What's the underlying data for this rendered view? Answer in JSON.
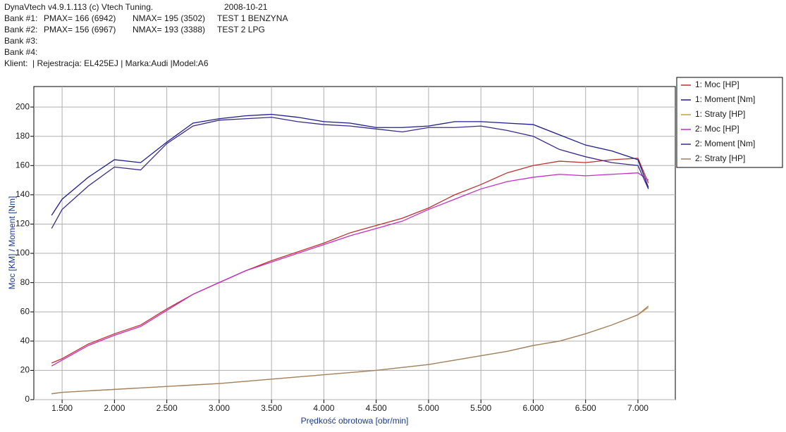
{
  "header": {
    "title": "DynaVtech v4.9.1.113 (c) Vtech Tuning.",
    "date": "2008-10-21",
    "banks": [
      [
        "Bank #1:",
        "PMAX= 166 (6942)",
        "NMAX= 195 (3502)",
        "TEST 1 BENZYNA"
      ],
      [
        "Bank #2:",
        "PMAX= 156 (6967)",
        "NMAX= 193 (3388)",
        "TEST 2 LPG"
      ],
      [
        "Bank #3:"
      ],
      [
        "Bank #4:"
      ]
    ],
    "client": "Klient:  | Rejestracja: EL425EJ | Marka:Audi |Model:A6"
  },
  "chart_data": {
    "type": "line",
    "x_label": "Prędkość obrotowa [obr/min]",
    "y_label": "Moc [KM] / Moment [Nm]",
    "x": [
      1400,
      1500,
      1750,
      2000,
      2250,
      2500,
      2750,
      3000,
      3250,
      3500,
      3750,
      4000,
      4250,
      4500,
      4750,
      5000,
      5250,
      5500,
      5750,
      6000,
      6250,
      6500,
      6750,
      7000,
      7100
    ],
    "series": [
      {
        "name": "1: Moc [HP]",
        "color": "#c03030",
        "values": [
          25,
          28,
          38,
          45,
          51,
          62,
          72,
          80,
          88,
          95,
          101,
          107,
          114,
          119,
          124,
          131,
          140,
          147,
          155,
          160,
          163,
          162,
          164,
          165,
          148
        ]
      },
      {
        "name": "1: Moment [Nm]",
        "color": "#1c1c8c",
        "values": [
          126,
          137,
          152,
          164,
          162,
          176,
          189,
          192,
          194,
          195,
          193,
          190,
          189,
          186,
          186,
          187,
          190,
          190,
          189,
          188,
          181,
          174,
          170,
          164,
          145
        ]
      },
      {
        "name": "1: Straty [HP]",
        "color": "#d09a40",
        "values": [
          4,
          5,
          6,
          7,
          8,
          9,
          10,
          11,
          12.5,
          14,
          15.5,
          17,
          18.5,
          20,
          22,
          24,
          27,
          30,
          33,
          37,
          40,
          45,
          51,
          58,
          63
        ]
      },
      {
        "name": "2: Moc [HP]",
        "color": "#c030c0",
        "values": [
          23,
          27,
          37,
          44,
          50,
          61,
          72,
          80,
          88,
          94,
          100,
          106,
          112,
          117,
          122,
          130,
          137,
          144,
          149,
          152,
          154,
          153,
          154,
          155,
          150
        ]
      },
      {
        "name": "2: Moment [Nm]",
        "color": "#3a2a8a",
        "values": [
          117,
          130,
          146,
          159,
          157,
          175,
          187,
          191,
          192,
          193,
          190,
          188,
          187,
          185,
          183,
          186,
          186,
          187,
          184,
          180,
          171,
          166,
          162,
          160,
          144
        ]
      },
      {
        "name": "2: Straty [HP]",
        "color": "#a08060",
        "values": [
          4,
          5,
          6,
          7,
          8,
          9,
          10,
          11,
          12.5,
          14,
          15.5,
          17,
          18.5,
          20,
          22,
          24,
          27,
          30,
          33,
          37,
          40,
          45,
          51,
          58,
          64
        ]
      }
    ],
    "xlim": [
      1230,
      7357
    ],
    "ylim": [
      0,
      214
    ],
    "xticks": [
      {
        "value": 1500,
        "label": "1.500"
      },
      {
        "value": 2000,
        "label": "2.000"
      },
      {
        "value": 2500,
        "label": "2.500"
      },
      {
        "value": 3000,
        "label": "3.000"
      },
      {
        "value": 3500,
        "label": "3.500"
      },
      {
        "value": 4000,
        "label": "4.000"
      },
      {
        "value": 4500,
        "label": "4.500"
      },
      {
        "value": 5000,
        "label": "5.000"
      },
      {
        "value": 5500,
        "label": "5.500"
      },
      {
        "value": 6000,
        "label": "6.000"
      },
      {
        "value": 6500,
        "label": "6.500"
      },
      {
        "value": 7000,
        "label": "7.000"
      }
    ],
    "yticks": [
      0,
      20,
      40,
      60,
      80,
      100,
      120,
      140,
      160,
      180,
      200
    ],
    "grid": true,
    "legend": "right"
  }
}
